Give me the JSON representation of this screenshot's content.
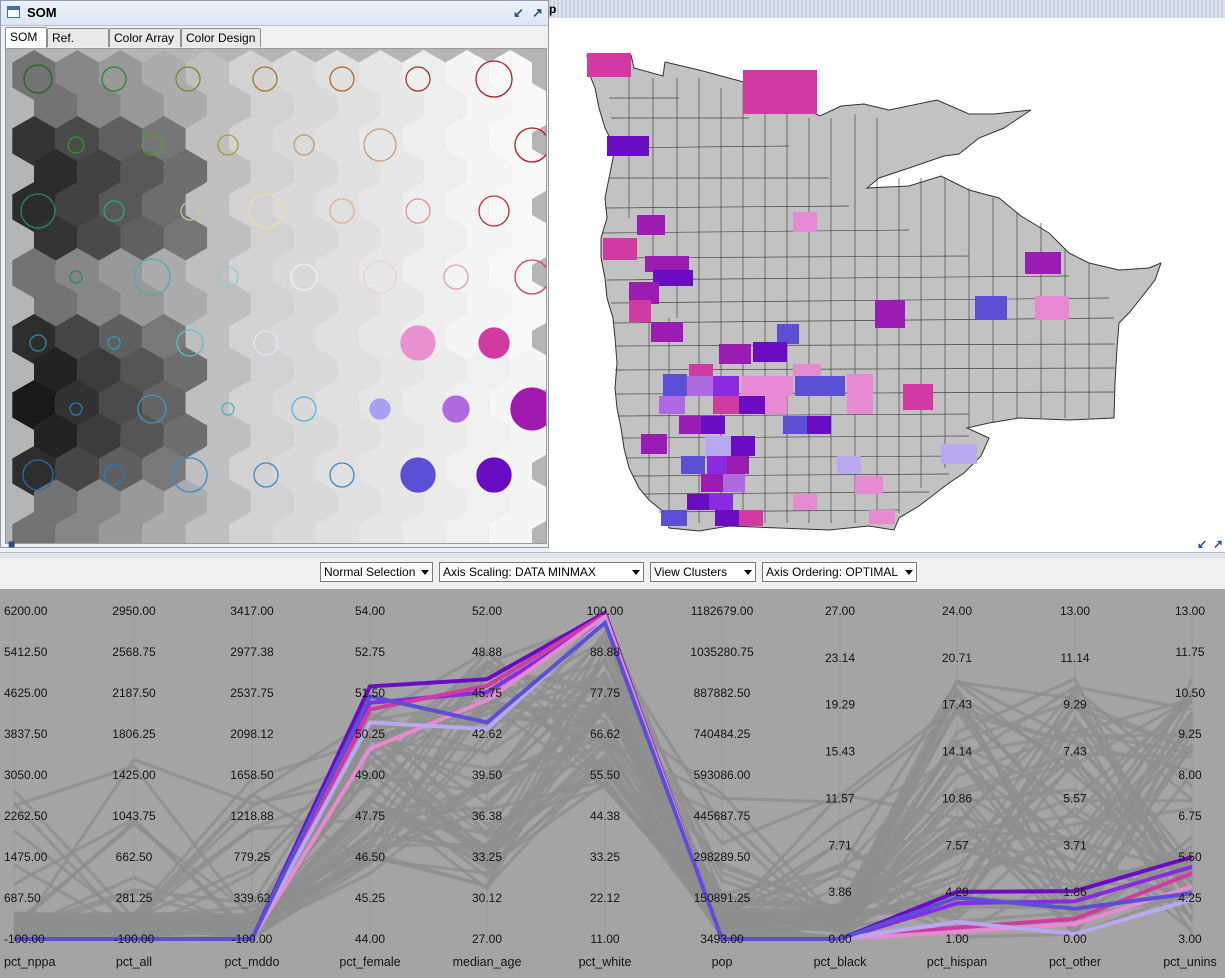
{
  "som_window": {
    "title": "SOM",
    "tabs": [
      "SOM",
      "Ref. SOM",
      "Color Array",
      "Color Design"
    ],
    "active_tab": "SOM"
  },
  "map_window": {
    "title_fragment": "p",
    "description": ""
  },
  "toolbar": {
    "selection": "Normal Selection",
    "axis_scaling": "Axis Scaling: DATA MINMAX",
    "clusters": "View Clusters",
    "axis_ordering": "Axis Ordering: OPTIMAL"
  },
  "icons": {
    "som_window_icon": "window-icon",
    "minimize": "minimize-icon",
    "maximize": "maximize-icon",
    "dropdown": "chevron-down-icon"
  },
  "colors": {
    "pcp_background": "#a4a4a4",
    "gray_line": "#8e8e8e",
    "purple_dark": "#6a0dc2",
    "purple": "#8a2be2",
    "magenta": "#d13aa3",
    "pink": "#e889d3",
    "lavender": "#b7a9f0",
    "blue_violet": "#5b4fd6"
  },
  "chart_data": {
    "type": "parallel-coordinates",
    "axes": [
      {
        "name": "pct_nppa",
        "ticks": [
          "6200.00",
          "5412.50",
          "4625.00",
          "3837.50",
          "3050.00",
          "2262.50",
          "1475.00",
          "687.50",
          "-100.00"
        ]
      },
      {
        "name": "pct_all",
        "ticks": [
          "2950.00",
          "2568.75",
          "2187.50",
          "1806.25",
          "1425.00",
          "1043.75",
          "662.50",
          "281.25",
          "-100.00"
        ]
      },
      {
        "name": "pct_mddo",
        "ticks": [
          "3417.00",
          "2977.38",
          "2537.75",
          "2098.12",
          "1658.50",
          "1218.88",
          "779.25",
          "339.62",
          "-100.00"
        ]
      },
      {
        "name": "pct_female",
        "ticks": [
          "54.00",
          "52.75",
          "51.50",
          "50.25",
          "49.00",
          "47.75",
          "46.50",
          "45.25",
          "44.00"
        ]
      },
      {
        "name": "median_age",
        "ticks": [
          "52.00",
          "48.88",
          "45.75",
          "42.62",
          "39.50",
          "36.38",
          "33.25",
          "30.12",
          "27.00"
        ]
      },
      {
        "name": "pct_white",
        "ticks": [
          "100.00",
          "88.88",
          "77.75",
          "66.62",
          "55.50",
          "44.38",
          "33.25",
          "22.12",
          "11.00"
        ]
      },
      {
        "name": "pop",
        "ticks": [
          "1182679.00",
          "1035280.75",
          "887882.50",
          "740484.25",
          "593086.00",
          "445687.75",
          "298289.50",
          "150891.25",
          "3493.00"
        ]
      },
      {
        "name": "pct_black",
        "ticks": [
          "27.00",
          "23.14",
          "19.29",
          "15.43",
          "11.57",
          "7.71",
          "3.86",
          "0.00"
        ]
      },
      {
        "name": "pct_hispan",
        "ticks": [
          "24.00",
          "20.71",
          "17.43",
          "14.14",
          "10.86",
          "7.57",
          "4.29",
          "1.00"
        ]
      },
      {
        "name": "pct_other",
        "ticks": [
          "13.00",
          "11.14",
          "9.29",
          "7.43",
          "5.57",
          "3.71",
          "1.86",
          "0.00"
        ]
      },
      {
        "name": "pct_unins",
        "ticks": [
          "13.00",
          "11.75",
          "10.50",
          "9.25",
          "8.00",
          "6.75",
          "5.50",
          "4.25",
          "3.00"
        ]
      }
    ],
    "highlighted_series": [
      {
        "color": "#6a0dc2",
        "values": [
          -100,
          -100,
          -100,
          51.7,
          46.8,
          99.5,
          3493,
          0.0,
          4.3,
          1.9,
          5.5
        ]
      },
      {
        "color": "#8a2be2",
        "values": [
          -100,
          -100,
          -100,
          51.2,
          45.8,
          98.0,
          3493,
          0.0,
          3.5,
          1.5,
          5.2
        ]
      },
      {
        "color": "#d13aa3",
        "values": [
          -100,
          -100,
          -100,
          51.0,
          46.3,
          99.0,
          3493,
          0.0,
          1.8,
          0.8,
          5.0
        ]
      },
      {
        "color": "#e889d3",
        "values": [
          -100,
          -100,
          -100,
          49.8,
          45.2,
          98.5,
          3493,
          0.0,
          1.5,
          0.6,
          4.6
        ]
      },
      {
        "color": "#b7a9f0",
        "values": [
          -100,
          -100,
          -100,
          50.6,
          43.0,
          97.5,
          3493,
          0.0,
          2.2,
          0.2,
          4.2
        ]
      },
      {
        "color": "#5b4fd6",
        "values": [
          -100,
          -100,
          -100,
          51.4,
          43.5,
          96.8,
          3493,
          0.0,
          3.9,
          1.2,
          4.4
        ]
      }
    ],
    "gray_series_count": 60
  }
}
